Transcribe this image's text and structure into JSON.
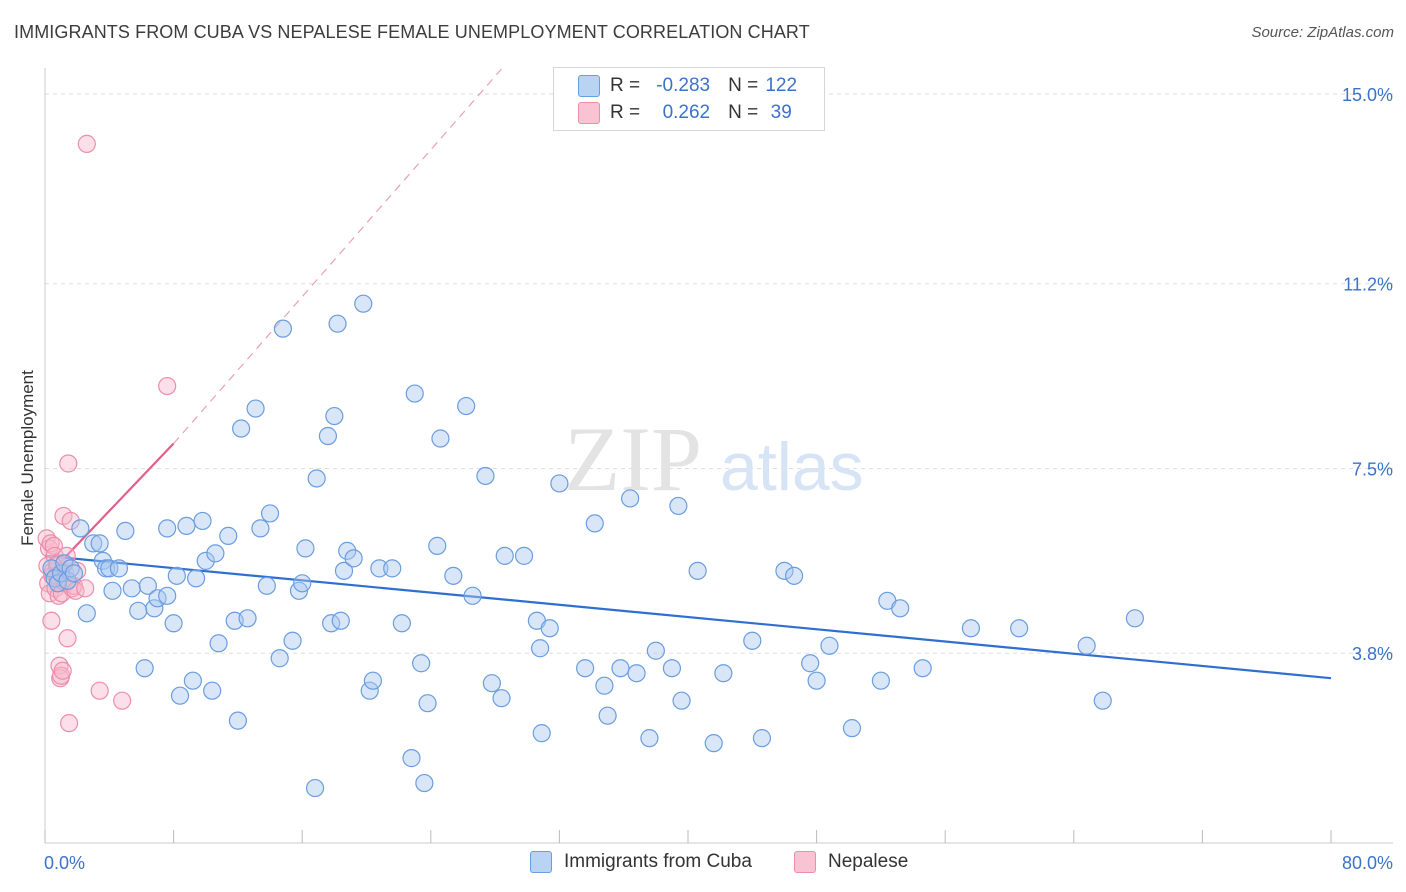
{
  "title": "IMMIGRANTS FROM CUBA VS NEPALESE FEMALE UNEMPLOYMENT CORRELATION CHART",
  "source": "Source: ZipAtlas.com",
  "watermark": {
    "zip": "ZIP",
    "atlas": "atlas"
  },
  "legend": {
    "rows": [
      {
        "r_label": "R =",
        "r_value": "-0.283",
        "n_label": "N =",
        "n_value": "122"
      },
      {
        "r_label": "R =",
        "r_value": "0.262",
        "n_label": "N =",
        "n_value": "39"
      }
    ]
  },
  "colors": {
    "cuba_fill": "#a8c8f0",
    "cuba_stroke": "#6a9de0",
    "cuba_line": "#2f6fd0",
    "nepal_fill": "#f8b8cc",
    "nepal_stroke": "#ec8eaa",
    "nepal_line": "#e0608a",
    "grid": "#dddddd",
    "tick_label": "#3b72c8"
  },
  "chart_data": {
    "type": "scatter",
    "title": "IMMIGRANTS FROM CUBA VS NEPALESE FEMALE UNEMPLOYMENT CORRELATION CHART",
    "xlabel": "",
    "ylabel": "Female Unemployment",
    "xlim": [
      0,
      80
    ],
    "ylim": [
      0,
      15.6
    ],
    "x_tick_labels": [
      "0.0%",
      "80.0%"
    ],
    "y_ticks": [
      3.8,
      7.5,
      11.2,
      15.0
    ],
    "y_tick_labels": [
      "3.8%",
      "7.5%",
      "11.2%",
      "15.0%"
    ],
    "series": [
      {
        "name": "Immigrants from Cuba",
        "r": -0.283,
        "n": 122,
        "trend": {
          "x": [
            0,
            80
          ],
          "y": [
            5.75,
            3.3
          ]
        },
        "points": [
          [
            0.4,
            5.5
          ],
          [
            0.6,
            5.3
          ],
          [
            0.8,
            5.2
          ],
          [
            1.0,
            5.4
          ],
          [
            1.2,
            5.6
          ],
          [
            1.4,
            5.25
          ],
          [
            1.6,
            5.5
          ],
          [
            1.8,
            5.4
          ],
          [
            2.2,
            6.3
          ],
          [
            2.6,
            4.6
          ],
          [
            3.0,
            6.0
          ],
          [
            3.4,
            6.0
          ],
          [
            3.6,
            5.65
          ],
          [
            3.8,
            5.5
          ],
          [
            4.0,
            5.5
          ],
          [
            4.2,
            5.05
          ],
          [
            4.6,
            5.5
          ],
          [
            5.0,
            6.25
          ],
          [
            5.4,
            5.1
          ],
          [
            5.8,
            4.65
          ],
          [
            6.2,
            3.5
          ],
          [
            6.4,
            5.15
          ],
          [
            6.8,
            4.7
          ],
          [
            7.0,
            4.9
          ],
          [
            7.6,
            4.95
          ],
          [
            7.6,
            6.3
          ],
          [
            8.0,
            4.4
          ],
          [
            8.2,
            5.35
          ],
          [
            8.4,
            2.95
          ],
          [
            8.8,
            6.35
          ],
          [
            9.2,
            3.25
          ],
          [
            9.4,
            5.3
          ],
          [
            9.8,
            6.45
          ],
          [
            10.0,
            5.65
          ],
          [
            10.4,
            3.05
          ],
          [
            10.6,
            5.8
          ],
          [
            10.8,
            4.0
          ],
          [
            11.4,
            6.15
          ],
          [
            11.8,
            4.45
          ],
          [
            12.0,
            2.45
          ],
          [
            12.2,
            8.3
          ],
          [
            12.6,
            4.5
          ],
          [
            13.1,
            8.7
          ],
          [
            13.4,
            6.3
          ],
          [
            13.8,
            5.15
          ],
          [
            14.0,
            6.6
          ],
          [
            14.6,
            3.7
          ],
          [
            14.8,
            10.3
          ],
          [
            15.4,
            4.05
          ],
          [
            15.8,
            5.05
          ],
          [
            16.0,
            5.2
          ],
          [
            16.2,
            5.9
          ],
          [
            16.8,
            1.1
          ],
          [
            16.9,
            7.3
          ],
          [
            17.6,
            8.15
          ],
          [
            17.8,
            4.4
          ],
          [
            18.0,
            8.55
          ],
          [
            18.2,
            10.4
          ],
          [
            18.4,
            4.45
          ],
          [
            18.6,
            5.45
          ],
          [
            18.8,
            5.85
          ],
          [
            19.2,
            5.7
          ],
          [
            19.8,
            10.8
          ],
          [
            20.2,
            3.05
          ],
          [
            20.4,
            3.25
          ],
          [
            20.8,
            5.5
          ],
          [
            21.6,
            5.5
          ],
          [
            22.2,
            4.4
          ],
          [
            22.8,
            1.7
          ],
          [
            23.0,
            9.0
          ],
          [
            23.4,
            3.6
          ],
          [
            23.6,
            1.2
          ],
          [
            23.8,
            2.8
          ],
          [
            24.4,
            5.95
          ],
          [
            24.6,
            8.1
          ],
          [
            25.4,
            5.35
          ],
          [
            26.2,
            8.75
          ],
          [
            26.6,
            4.95
          ],
          [
            27.4,
            7.35
          ],
          [
            27.8,
            3.2
          ],
          [
            28.4,
            2.9
          ],
          [
            28.6,
            5.75
          ],
          [
            29.8,
            5.75
          ],
          [
            30.6,
            4.45
          ],
          [
            30.8,
            3.9
          ],
          [
            30.9,
            2.2
          ],
          [
            31.4,
            4.3
          ],
          [
            32.0,
            7.2
          ],
          [
            33.6,
            3.5
          ],
          [
            34.2,
            6.4
          ],
          [
            34.8,
            3.15
          ],
          [
            35.0,
            2.55
          ],
          [
            35.8,
            3.5
          ],
          [
            36.4,
            6.9
          ],
          [
            36.8,
            3.4
          ],
          [
            37.6,
            2.1
          ],
          [
            38.0,
            3.85
          ],
          [
            39.0,
            3.5
          ],
          [
            39.4,
            6.75
          ],
          [
            39.6,
            2.85
          ],
          [
            40.6,
            5.45
          ],
          [
            41.6,
            2.0
          ],
          [
            42.2,
            3.4
          ],
          [
            44.0,
            4.05
          ],
          [
            44.6,
            2.1
          ],
          [
            46.0,
            5.45
          ],
          [
            46.6,
            5.35
          ],
          [
            47.6,
            3.6
          ],
          [
            48.0,
            3.25
          ],
          [
            48.8,
            3.95
          ],
          [
            50.2,
            2.3
          ],
          [
            52.0,
            3.25
          ],
          [
            52.4,
            4.85
          ],
          [
            53.2,
            4.7
          ],
          [
            54.6,
            3.5
          ],
          [
            57.6,
            4.3
          ],
          [
            60.6,
            4.3
          ],
          [
            64.8,
            3.95
          ],
          [
            65.8,
            2.85
          ],
          [
            67.8,
            4.5
          ]
        ]
      },
      {
        "name": "Nepalese",
        "r": 0.262,
        "n": 39,
        "trend": {
          "x": [
            0,
            8.0
          ],
          "y": [
            5.3,
            8.0
          ]
        },
        "trend_extension": {
          "x": [
            8.0,
            28.4
          ],
          "y": [
            8.0,
            15.5
          ]
        },
        "points": [
          [
            0.1,
            6.1
          ],
          [
            0.15,
            5.55
          ],
          [
            0.2,
            5.2
          ],
          [
            0.25,
            5.9
          ],
          [
            0.3,
            5.0
          ],
          [
            0.35,
            6.0
          ],
          [
            0.4,
            4.45
          ],
          [
            0.45,
            5.35
          ],
          [
            0.5,
            5.45
          ],
          [
            0.55,
            5.95
          ],
          [
            0.6,
            5.75
          ],
          [
            0.65,
            5.1
          ],
          [
            0.7,
            5.35
          ],
          [
            0.75,
            5.55
          ],
          [
            0.8,
            5.6
          ],
          [
            0.85,
            4.95
          ],
          [
            0.9,
            3.55
          ],
          [
            0.95,
            3.3
          ],
          [
            1.0,
            3.35
          ],
          [
            1.05,
            5.0
          ],
          [
            1.1,
            3.45
          ],
          [
            1.15,
            6.55
          ],
          [
            1.2,
            5.25
          ],
          [
            1.25,
            5.4
          ],
          [
            1.3,
            5.2
          ],
          [
            1.35,
            5.75
          ],
          [
            1.4,
            4.1
          ],
          [
            1.45,
            7.6
          ],
          [
            1.5,
            2.4
          ],
          [
            1.6,
            6.45
          ],
          [
            1.7,
            5.1
          ],
          [
            1.8,
            5.15
          ],
          [
            1.9,
            5.05
          ],
          [
            2.0,
            5.45
          ],
          [
            2.5,
            5.1
          ],
          [
            2.6,
            14.0
          ],
          [
            3.4,
            3.05
          ],
          [
            4.8,
            2.85
          ],
          [
            7.6,
            9.15
          ]
        ]
      }
    ]
  },
  "bottom_legend": [
    {
      "label": "Immigrants from Cuba"
    },
    {
      "label": "Nepalese"
    }
  ]
}
